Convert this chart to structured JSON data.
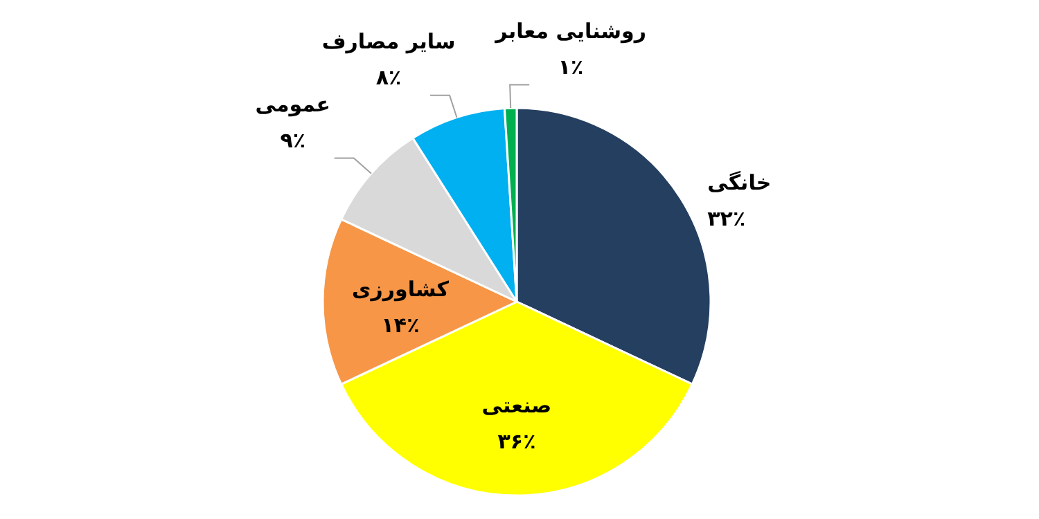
{
  "chart_data": {
    "type": "pie",
    "categories": [
      "خانگی",
      "صنعتی",
      "کشاورزی",
      "عمومی",
      "سایر مصارف",
      "روشنایی معابر"
    ],
    "values": [
      32,
      36,
      14,
      9,
      8,
      1
    ],
    "value_labels": [
      "۳۲٪",
      "۳۶٪",
      "۱۴٪",
      "۹٪",
      "۸٪",
      "۱٪"
    ],
    "colors": [
      "#243f60",
      "#ffff00",
      "#f79646",
      "#d9d9d9",
      "#00b0f0",
      "#00b050"
    ],
    "legend": false
  }
}
